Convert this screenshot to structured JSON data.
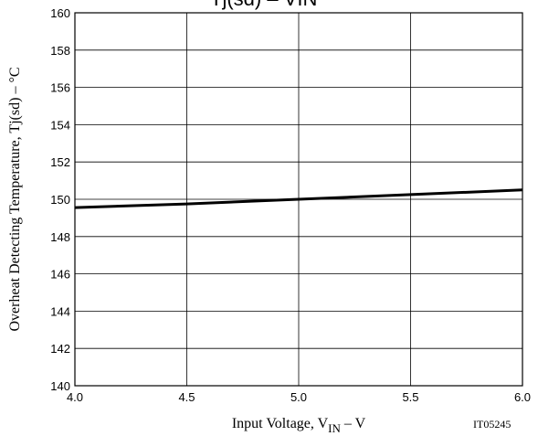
{
  "chart_data": {
    "type": "line",
    "title": {
      "main": "Tj(sd) – VIN"
    },
    "xlabel": {
      "prefix": "Input Voltage, V",
      "sub": "IN",
      "suffix": "  –  V"
    },
    "ylabel": "Overheat Detecting Temperature, Tj(sd)  –  °C",
    "figure_code": "IT05245",
    "xlim": [
      4.0,
      6.0
    ],
    "ylim": [
      140,
      160
    ],
    "x_ticks": [
      "4.0",
      "4.5",
      "5.0",
      "5.5",
      "6.0"
    ],
    "y_ticks": [
      "140",
      "142",
      "144",
      "146",
      "148",
      "150",
      "152",
      "154",
      "156",
      "158",
      "160"
    ],
    "grid": true,
    "series": [
      {
        "x": [
          4.0,
          4.5,
          5.0,
          5.5,
          6.0
        ],
        "y": [
          149.55,
          149.75,
          150.0,
          150.25,
          150.5
        ],
        "color": "#000000"
      }
    ]
  }
}
